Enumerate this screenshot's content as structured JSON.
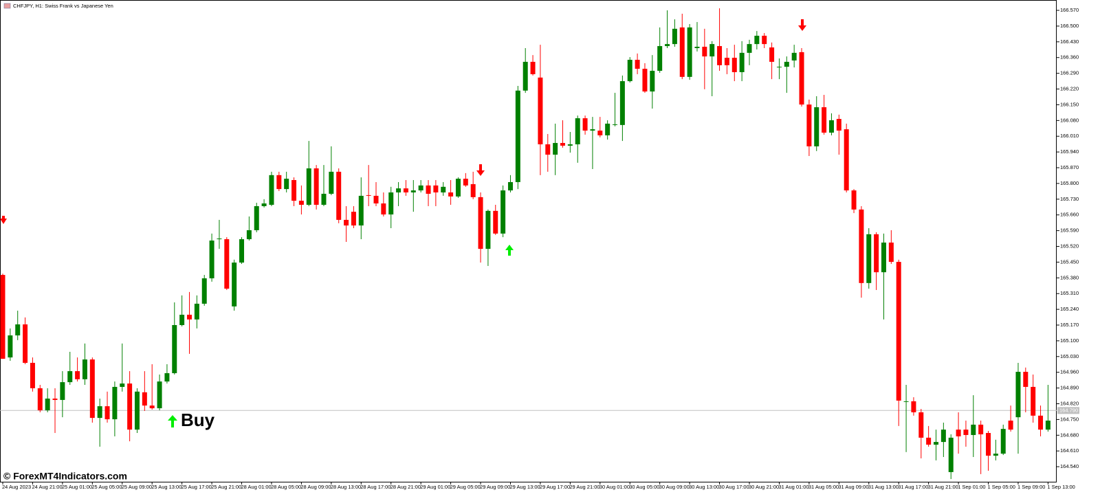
{
  "chart_data": {
    "type": "candlestick",
    "title": "CHFJPY, H1:  Swiss Frank vs Japanese Yen",
    "watermark": "© ForexMT4Indicators.com",
    "annotation": "Buy",
    "up_color": "#008000",
    "down_color": "#ff0000",
    "x_labels": [
      "24 Aug 2023",
      "24 Aug 21:00",
      "25 Aug 01:00",
      "25 Aug 05:00",
      "25 Aug 09:00",
      "25 Aug 13:00",
      "25 Aug 17:00",
      "25 Aug 21:00",
      "28 Aug 01:00",
      "28 Aug 05:00",
      "28 Aug 09:00",
      "28 Aug 13:00",
      "28 Aug 17:00",
      "28 Aug 21:00",
      "29 Aug 01:00",
      "29 Aug 05:00",
      "29 Aug 09:00",
      "29 Aug 13:00",
      "29 Aug 17:00",
      "29 Aug 21:00",
      "30 Aug 01:00",
      "30 Aug 05:00",
      "30 Aug 09:00",
      "30 Aug 13:00",
      "30 Aug 17:00",
      "30 Aug 21:00",
      "31 Aug 01:00",
      "31 Aug 05:00",
      "31 Aug 09:00",
      "31 Aug 13:00",
      "31 Aug 17:00",
      "31 Aug 21:00",
      "1 Sep 01:00",
      "1 Sep 05:00",
      "1 Sep 09:00",
      "1 Sep 13:00"
    ],
    "open": [
      165.393,
      165.026,
      165.124,
      165.173,
      165.002,
      164.889,
      164.791,
      164.843,
      164.837,
      164.916,
      164.965,
      164.929,
      165.017,
      164.757,
      164.809,
      164.751,
      164.895,
      164.91,
      164.705,
      164.871,
      164.812,
      164.8,
      164.919,
      164.956,
      165.17,
      165.216,
      165.195,
      165.265,
      165.378,
      165.552,
      165.552,
      165.253,
      165.448,
      165.552,
      165.592,
      165.699,
      165.705,
      165.837,
      165.775,
      165.815,
      165.723,
      165.705,
      165.867,
      165.705,
      165.754,
      165.852,
      165.638,
      165.674,
      165.613,
      165.748,
      165.745,
      165.711,
      165.662,
      165.76,
      165.778,
      165.76,
      165.769,
      165.791,
      165.791,
      165.76,
      165.76,
      165.742,
      165.821,
      165.797,
      165.739,
      165.509,
      165.678,
      165.577,
      165.769,
      165.806,
      166.213,
      166.341,
      166.271,
      165.974,
      165.928,
      165.98,
      165.968,
      165.974,
      166.09,
      166.035,
      166.035,
      166.014,
      166.06,
      166.06,
      166.255,
      166.35,
      166.31,
      166.209,
      166.301,
      166.411,
      166.42,
      166.494,
      166.274,
      166.402,
      166.408,
      166.365,
      166.411,
      166.359,
      166.359,
      166.295,
      166.381,
      166.42,
      166.457,
      166.405,
      166.316,
      166.319,
      166.347,
      166.384,
      166.151,
      165.965,
      166.139,
      166.026,
      166.087,
      166.041,
      165.769,
      165.684,
      165.357,
      165.574,
      165.405,
      165.537,
      165.451,
      164.828,
      164.831,
      164.782,
      164.669,
      164.638,
      164.65,
      164.516,
      164.705,
      164.705,
      164.681,
      164.727,
      164.69,
      164.589,
      164.598,
      164.745,
      164.76,
      164.962,
      164.895,
      164.767,
      164.705
    ],
    "high": [
      165.399,
      165.155,
      165.234,
      165.204,
      165.026,
      164.904,
      164.889,
      164.889,
      164.965,
      165.051,
      165.026,
      165.088,
      165.026,
      164.843,
      164.874,
      164.919,
      165.088,
      164.965,
      164.889,
      164.965,
      164.996,
      164.95,
      164.996,
      165.271,
      165.302,
      165.317,
      165.302,
      165.393,
      165.577,
      165.638,
      165.561,
      165.461,
      165.561,
      165.653,
      165.714,
      165.73,
      165.852,
      165.852,
      165.852,
      165.827,
      165.791,
      165.989,
      165.882,
      165.882,
      165.965,
      165.867,
      165.699,
      165.699,
      165.827,
      165.882,
      165.806,
      165.76,
      165.785,
      165.806,
      165.815,
      165.815,
      165.815,
      165.815,
      165.815,
      165.806,
      165.815,
      165.827,
      165.846,
      165.852,
      165.76,
      165.684,
      165.705,
      165.791,
      165.837,
      166.234,
      166.402,
      166.371,
      166.417,
      166.02,
      166.066,
      166.081,
      166.029,
      166.102,
      166.102,
      166.096,
      166.096,
      166.081,
      166.203,
      166.28,
      166.362,
      166.378,
      166.335,
      166.371,
      166.494,
      166.57,
      166.53,
      166.555,
      166.509,
      166.518,
      166.488,
      166.433,
      166.579,
      166.402,
      166.417,
      166.433,
      166.439,
      166.478,
      166.469,
      166.427,
      166.356,
      166.365,
      166.417,
      166.402,
      166.173,
      166.188,
      166.194,
      166.112,
      166.106,
      166.066,
      165.775,
      165.699,
      165.601,
      165.583,
      165.577,
      165.592,
      165.461,
      164.904,
      164.849,
      164.797,
      164.721,
      164.705,
      164.736,
      164.684,
      164.782,
      164.745,
      164.858,
      164.745,
      164.699,
      164.66,
      164.727,
      164.812,
      165.002,
      164.981,
      164.95,
      164.812,
      164.904
    ],
    "low": [
      165.02,
      165.011,
      165.103,
      164.996,
      164.874,
      164.782,
      164.782,
      164.69,
      164.76,
      164.904,
      164.919,
      164.904,
      164.736,
      164.629,
      164.736,
      164.675,
      164.874,
      164.653,
      164.69,
      164.788,
      164.794,
      164.791,
      164.91,
      164.95,
      165.164,
      165.042,
      165.155,
      165.256,
      165.363,
      165.509,
      165.326,
      165.234,
      165.442,
      165.546,
      165.583,
      165.693,
      165.699,
      165.766,
      165.76,
      165.699,
      165.662,
      165.699,
      165.684,
      165.699,
      165.748,
      165.623,
      165.54,
      165.601,
      165.552,
      165.699,
      165.699,
      165.653,
      165.601,
      165.699,
      165.745,
      165.674,
      165.76,
      165.699,
      165.699,
      165.745,
      165.705,
      165.736,
      165.785,
      165.73,
      165.448,
      165.433,
      165.571,
      165.561,
      165.76,
      165.775,
      166.203,
      166.28,
      165.837,
      165.852,
      165.837,
      165.959,
      165.937,
      165.892,
      166.017,
      165.864,
      166.005,
      165.995,
      166.054,
      165.989,
      166.249,
      166.286,
      166.203,
      166.133,
      166.292,
      166.402,
      166.408,
      166.264,
      166.261,
      166.387,
      166.219,
      166.188,
      166.301,
      166.286,
      166.255,
      166.255,
      166.326,
      166.396,
      166.402,
      166.264,
      166.264,
      166.203,
      166.316,
      166.142,
      165.922,
      165.944,
      166.017,
      166.014,
      165.928,
      165.76,
      165.668,
      165.292,
      165.332,
      165.326,
      165.195,
      165.442,
      164.721,
      164.605,
      164.767,
      164.577,
      164.629,
      164.568,
      164.583,
      164.485,
      164.598,
      164.629,
      164.583,
      164.507,
      164.522,
      164.568,
      164.592,
      164.696,
      164.598,
      164.782,
      164.736,
      164.675,
      164.696
    ],
    "close": [
      165.02,
      165.124,
      165.173,
      165.002,
      164.889,
      164.791,
      164.843,
      164.837,
      164.916,
      164.965,
      164.929,
      165.017,
      164.757,
      164.809,
      164.751,
      164.895,
      164.91,
      164.705,
      164.874,
      164.812,
      164.8,
      164.919,
      164.956,
      165.17,
      165.216,
      165.195,
      165.265,
      165.378,
      165.546,
      165.555,
      165.332,
      165.448,
      165.552,
      165.592,
      165.699,
      165.711,
      165.837,
      165.775,
      165.821,
      165.723,
      165.705,
      165.867,
      165.705,
      165.754,
      165.852,
      165.638,
      165.613,
      165.613,
      165.745,
      165.745,
      165.711,
      165.662,
      165.76,
      165.778,
      165.76,
      165.769,
      165.791,
      165.754,
      165.76,
      165.785,
      165.742,
      165.821,
      165.791,
      165.739,
      165.509,
      165.678,
      165.577,
      165.769,
      165.806,
      166.213,
      166.341,
      166.286,
      165.974,
      165.928,
      165.98,
      165.968,
      165.974,
      166.09,
      166.035,
      166.041,
      166.014,
      166.066,
      166.063,
      166.255,
      166.35,
      166.31,
      166.209,
      166.301,
      166.411,
      166.42,
      166.488,
      166.274,
      166.494,
      166.408,
      166.365,
      166.42,
      166.326,
      166.326,
      166.295,
      166.381,
      166.42,
      166.457,
      166.42,
      166.341,
      166.319,
      166.341,
      166.381,
      166.151,
      165.965,
      166.139,
      166.026,
      166.081,
      166.035,
      165.769,
      165.684,
      165.357,
      165.574,
      165.405,
      165.537,
      165.451,
      164.834,
      164.831,
      164.782,
      164.669,
      164.638,
      164.65,
      164.705,
      164.669,
      164.675,
      164.681,
      164.727,
      164.684,
      164.589,
      164.598,
      164.708,
      164.705,
      164.962,
      164.895,
      164.767,
      164.705,
      164.745
    ],
    "current_price": {
      "value": 164.79,
      "label": "164.790"
    },
    "ylim": [
      164.473,
      166.616
    ],
    "yticks": [
      {
        "value": 166.57,
        "label": "166.570"
      },
      {
        "value": 166.5,
        "label": "166.500"
      },
      {
        "value": 166.43,
        "label": "166.430"
      },
      {
        "value": 166.36,
        "label": "166.360"
      },
      {
        "value": 166.29,
        "label": "166.290"
      },
      {
        "value": 166.22,
        "label": "166.220"
      },
      {
        "value": 166.15,
        "label": "166.150"
      },
      {
        "value": 166.08,
        "label": "166.080"
      },
      {
        "value": 166.01,
        "label": "166.010"
      },
      {
        "value": 165.94,
        "label": "165.940"
      },
      {
        "value": 165.87,
        "label": "165.870"
      },
      {
        "value": 165.8,
        "label": "165.800"
      },
      {
        "value": 165.73,
        "label": "165.730"
      },
      {
        "value": 165.66,
        "label": "165.660"
      },
      {
        "value": 165.59,
        "label": "165.590"
      },
      {
        "value": 165.52,
        "label": "165.520"
      },
      {
        "value": 165.45,
        "label": "165.450"
      },
      {
        "value": 165.38,
        "label": "165.380"
      },
      {
        "value": 165.31,
        "label": "165.310"
      },
      {
        "value": 165.24,
        "label": "165.240"
      },
      {
        "value": 165.17,
        "label": "165.170"
      },
      {
        "value": 165.1,
        "label": "165.100"
      },
      {
        "value": 165.03,
        "label": "165.030"
      },
      {
        "value": 164.96,
        "label": "164.960"
      },
      {
        "value": 164.89,
        "label": "164.890"
      },
      {
        "value": 164.82,
        "label": "164.820"
      },
      {
        "value": 164.75,
        "label": "164.750"
      },
      {
        "value": 164.68,
        "label": "164.680"
      },
      {
        "value": 164.61,
        "label": "164.610"
      },
      {
        "value": 164.54,
        "label": "164.540"
      }
    ]
  }
}
